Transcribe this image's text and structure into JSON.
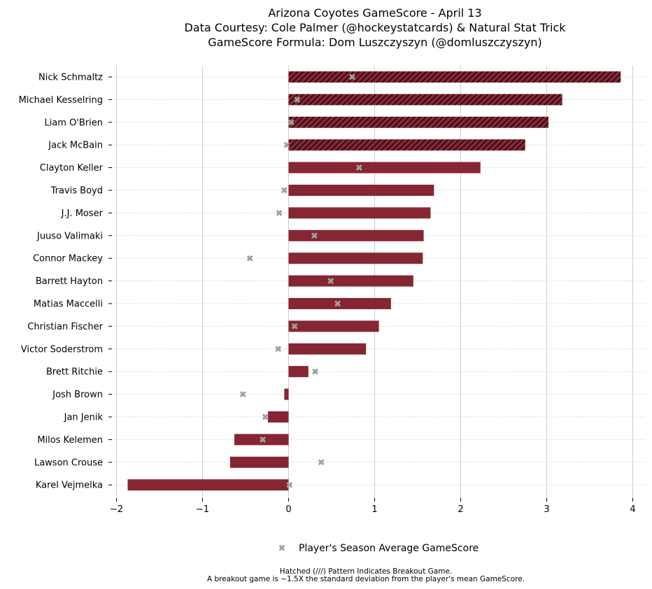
{
  "chart_data": {
    "type": "bar",
    "orientation": "horizontal",
    "title_lines": [
      "Arizona Coyotes GameScore - April 13",
      "Data Courtesy: Cole Palmer (@hockeystatcards) & Natural Stat Trick",
      "GameScore Formula: Dom Luszczyszyn (@domluszczyszyn)"
    ],
    "xlim": [
      -2.0,
      4.0
    ],
    "x_ticks": [
      -2,
      -1,
      0,
      1,
      2,
      3,
      4
    ],
    "x_tick_labels": [
      "−2",
      "−1",
      "0",
      "1",
      "2",
      "3",
      "4"
    ],
    "grid": true,
    "bar_color": "#862633",
    "marker_color": "#a0a0a0",
    "categories": [
      "Nick Schmaltz",
      "Michael Kesselring",
      "Liam O'Brien",
      "Jack McBain",
      "Clayton Keller",
      "Travis Boyd",
      "J.J. Moser",
      "Juuso Valimaki",
      "Connor Mackey",
      "Barrett Hayton",
      "Matias Maccelli",
      "Christian Fischer",
      "Victor Soderstrom",
      "Brett Ritchie",
      "Josh Brown",
      "Jan Jenik",
      "Milos Kelemen",
      "Lawson Crouse",
      "Karel Vejmelka"
    ],
    "series": [
      {
        "role": "game_score",
        "values": [
          3.86,
          3.18,
          3.02,
          2.75,
          2.23,
          1.69,
          1.65,
          1.57,
          1.56,
          1.45,
          1.19,
          1.05,
          0.9,
          0.23,
          -0.05,
          -0.24,
          -0.63,
          -0.68,
          -1.87
        ],
        "breakout": [
          true,
          true,
          true,
          true,
          false,
          false,
          false,
          false,
          false,
          false,
          false,
          false,
          false,
          false,
          false,
          false,
          false,
          false,
          false
        ]
      },
      {
        "name": "Player's Season Average GameScore",
        "role": "season_average",
        "marker": "x",
        "values": [
          0.74,
          0.1,
          0.03,
          -0.02,
          0.82,
          -0.05,
          -0.11,
          0.3,
          -0.45,
          0.49,
          0.57,
          0.07,
          -0.12,
          0.31,
          -0.53,
          -0.27,
          -0.3,
          0.38,
          0.01
        ]
      }
    ],
    "legend": {
      "placement": "bottom-center",
      "label": "Player's Season Average GameScore"
    },
    "footnote_lines": [
      "Hatched (///) Pattern Indicates Breakout Game.",
      "A breakout game is ~1.5X the standard deviation from the player's mean GameScore."
    ]
  }
}
